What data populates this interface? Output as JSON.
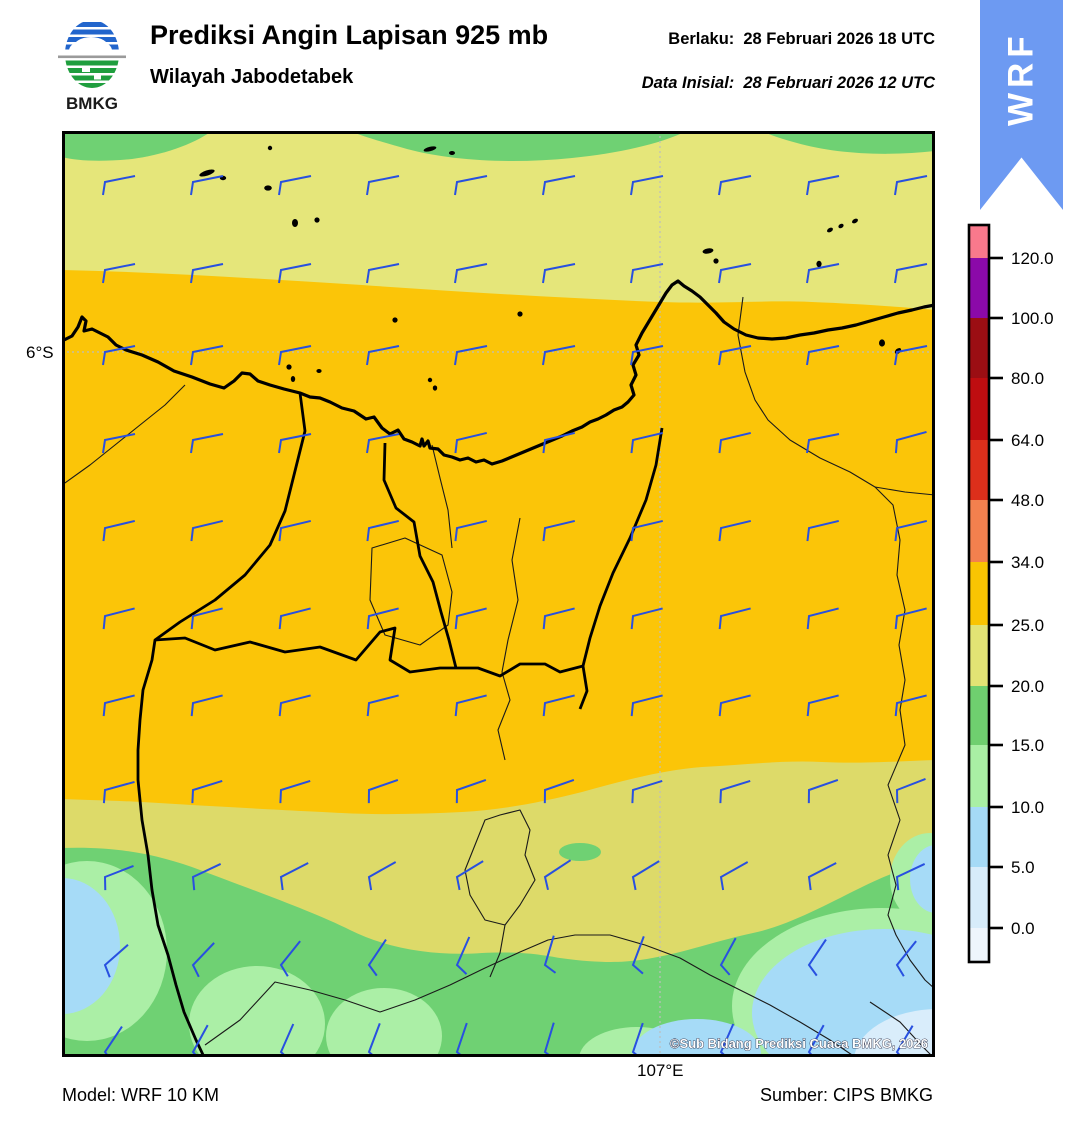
{
  "header": {
    "title": "Prediksi Angin Lapisan 925 mb",
    "subtitle": "Wilayah Jabodetabek",
    "valid_label": "Berlaku:",
    "valid_value": "28 Februari 2026 18 UTC",
    "init_label": "Data Inisial:",
    "init_value": "28 Februari 2026 12 UTC",
    "logo_text": "BMKG",
    "ribbon_text": "WRF",
    "ribbon_color": "#6D9AF2"
  },
  "map": {
    "lat_label": "6°S",
    "lon_label": "107°E",
    "copyright": "©Sub Bidang Prediksi Cuaca BMKG, 2026",
    "wind_barb_color": "#2850E0",
    "region_colors": {
      "khaki_top": "#E5E67A",
      "khaki_bottom": "#DDDA69",
      "gold": "#FBC508",
      "green": "#6FD173",
      "light_green": "#ABEFA6",
      "light_blue": "#A6DBF7",
      "pale_blue": "#D9EDFB"
    }
  },
  "colorbar": {
    "labels": [
      "120.0",
      "100.0",
      "80.0",
      "64.0",
      "48.0",
      "34.0",
      "25.0",
      "20.0",
      "15.0",
      "10.0",
      "5.0",
      "0.0"
    ],
    "colors": [
      "#F9798C",
      "#8B09A9",
      "#9B0E13",
      "#BE0D10",
      "#DC2F1B",
      "#F3804E",
      "#F9C402",
      "#E2E374",
      "#6FCF6F",
      "#A9EFA4",
      "#A5DAF6",
      "#D7ECFA",
      "#EEF5FC"
    ]
  },
  "footer": {
    "model": "Model: WRF 10 KM",
    "source": "Sumber: CIPS BMKG"
  }
}
